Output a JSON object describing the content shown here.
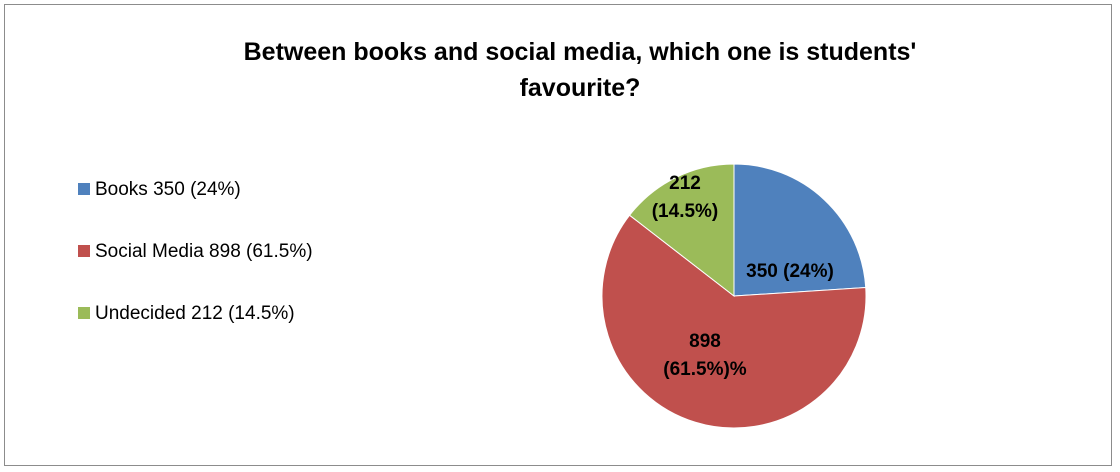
{
  "chart_data": {
    "type": "pie",
    "title": "Between books and social media, which one is students' favourite?",
    "title_lines": [
      "Between books and social media, which one is students'",
      "favourite?"
    ],
    "categories": [
      "Books 350 (24%)",
      "Social Media 898 (61.5%)",
      "Undecided 212 (14.5%)"
    ],
    "values": [
      350,
      898,
      212
    ],
    "percentages": [
      24,
      61.5,
      14.5
    ],
    "colors": [
      "#4F81BD",
      "#C0504D",
      "#9BBB59"
    ],
    "data_labels": [
      [
        "350 (24%)"
      ],
      [
        "898",
        "(61.5%)%"
      ],
      [
        "212",
        "(14.5%)"
      ]
    ],
    "legend_position": "left",
    "start_angle": "12 o'clock",
    "direction": "clockwise"
  }
}
